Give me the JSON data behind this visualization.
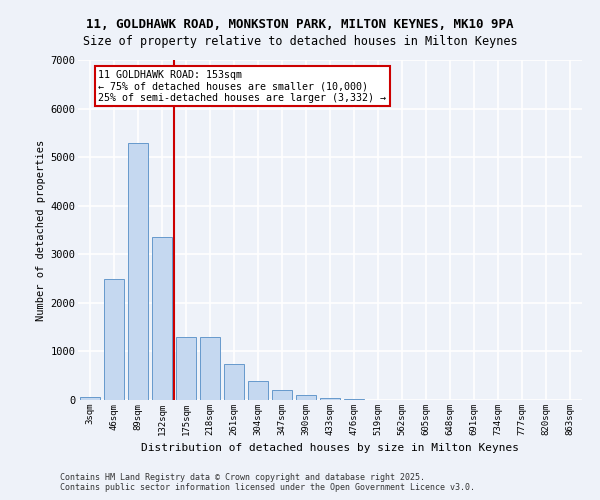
{
  "title_line1": "11, GOLDHAWK ROAD, MONKSTON PARK, MILTON KEYNES, MK10 9PA",
  "title_line2": "Size of property relative to detached houses in Milton Keynes",
  "xlabel": "Distribution of detached houses by size in Milton Keynes",
  "ylabel": "Number of detached properties",
  "categories": [
    "3sqm",
    "46sqm",
    "89sqm",
    "132sqm",
    "175sqm",
    "218sqm",
    "261sqm",
    "304sqm",
    "347sqm",
    "390sqm",
    "433sqm",
    "476sqm",
    "519sqm",
    "562sqm",
    "605sqm",
    "648sqm",
    "691sqm",
    "734sqm",
    "777sqm",
    "820sqm",
    "863sqm"
  ],
  "bar_heights": [
    60,
    2500,
    5300,
    3350,
    1300,
    1300,
    750,
    390,
    200,
    110,
    50,
    30,
    10,
    5,
    2,
    2,
    1,
    1,
    1,
    1,
    1
  ],
  "bar_color": "#c5d8f0",
  "bar_edge_color": "#6699cc",
  "vline_color": "#cc0000",
  "vline_pos": 3.48,
  "annotation_title": "11 GOLDHAWK ROAD: 153sqm",
  "annotation_line2": "← 75% of detached houses are smaller (10,000)",
  "annotation_line3": "25% of semi-detached houses are larger (3,332) →",
  "annotation_box_color": "#cc0000",
  "ylim": [
    0,
    7000
  ],
  "yticks": [
    0,
    1000,
    2000,
    3000,
    4000,
    5000,
    6000,
    7000
  ],
  "footer_line1": "Contains HM Land Registry data © Crown copyright and database right 2025.",
  "footer_line2": "Contains public sector information licensed under the Open Government Licence v3.0.",
  "bg_color": "#eef2f9",
  "plot_bg_color": "#eef2f9"
}
